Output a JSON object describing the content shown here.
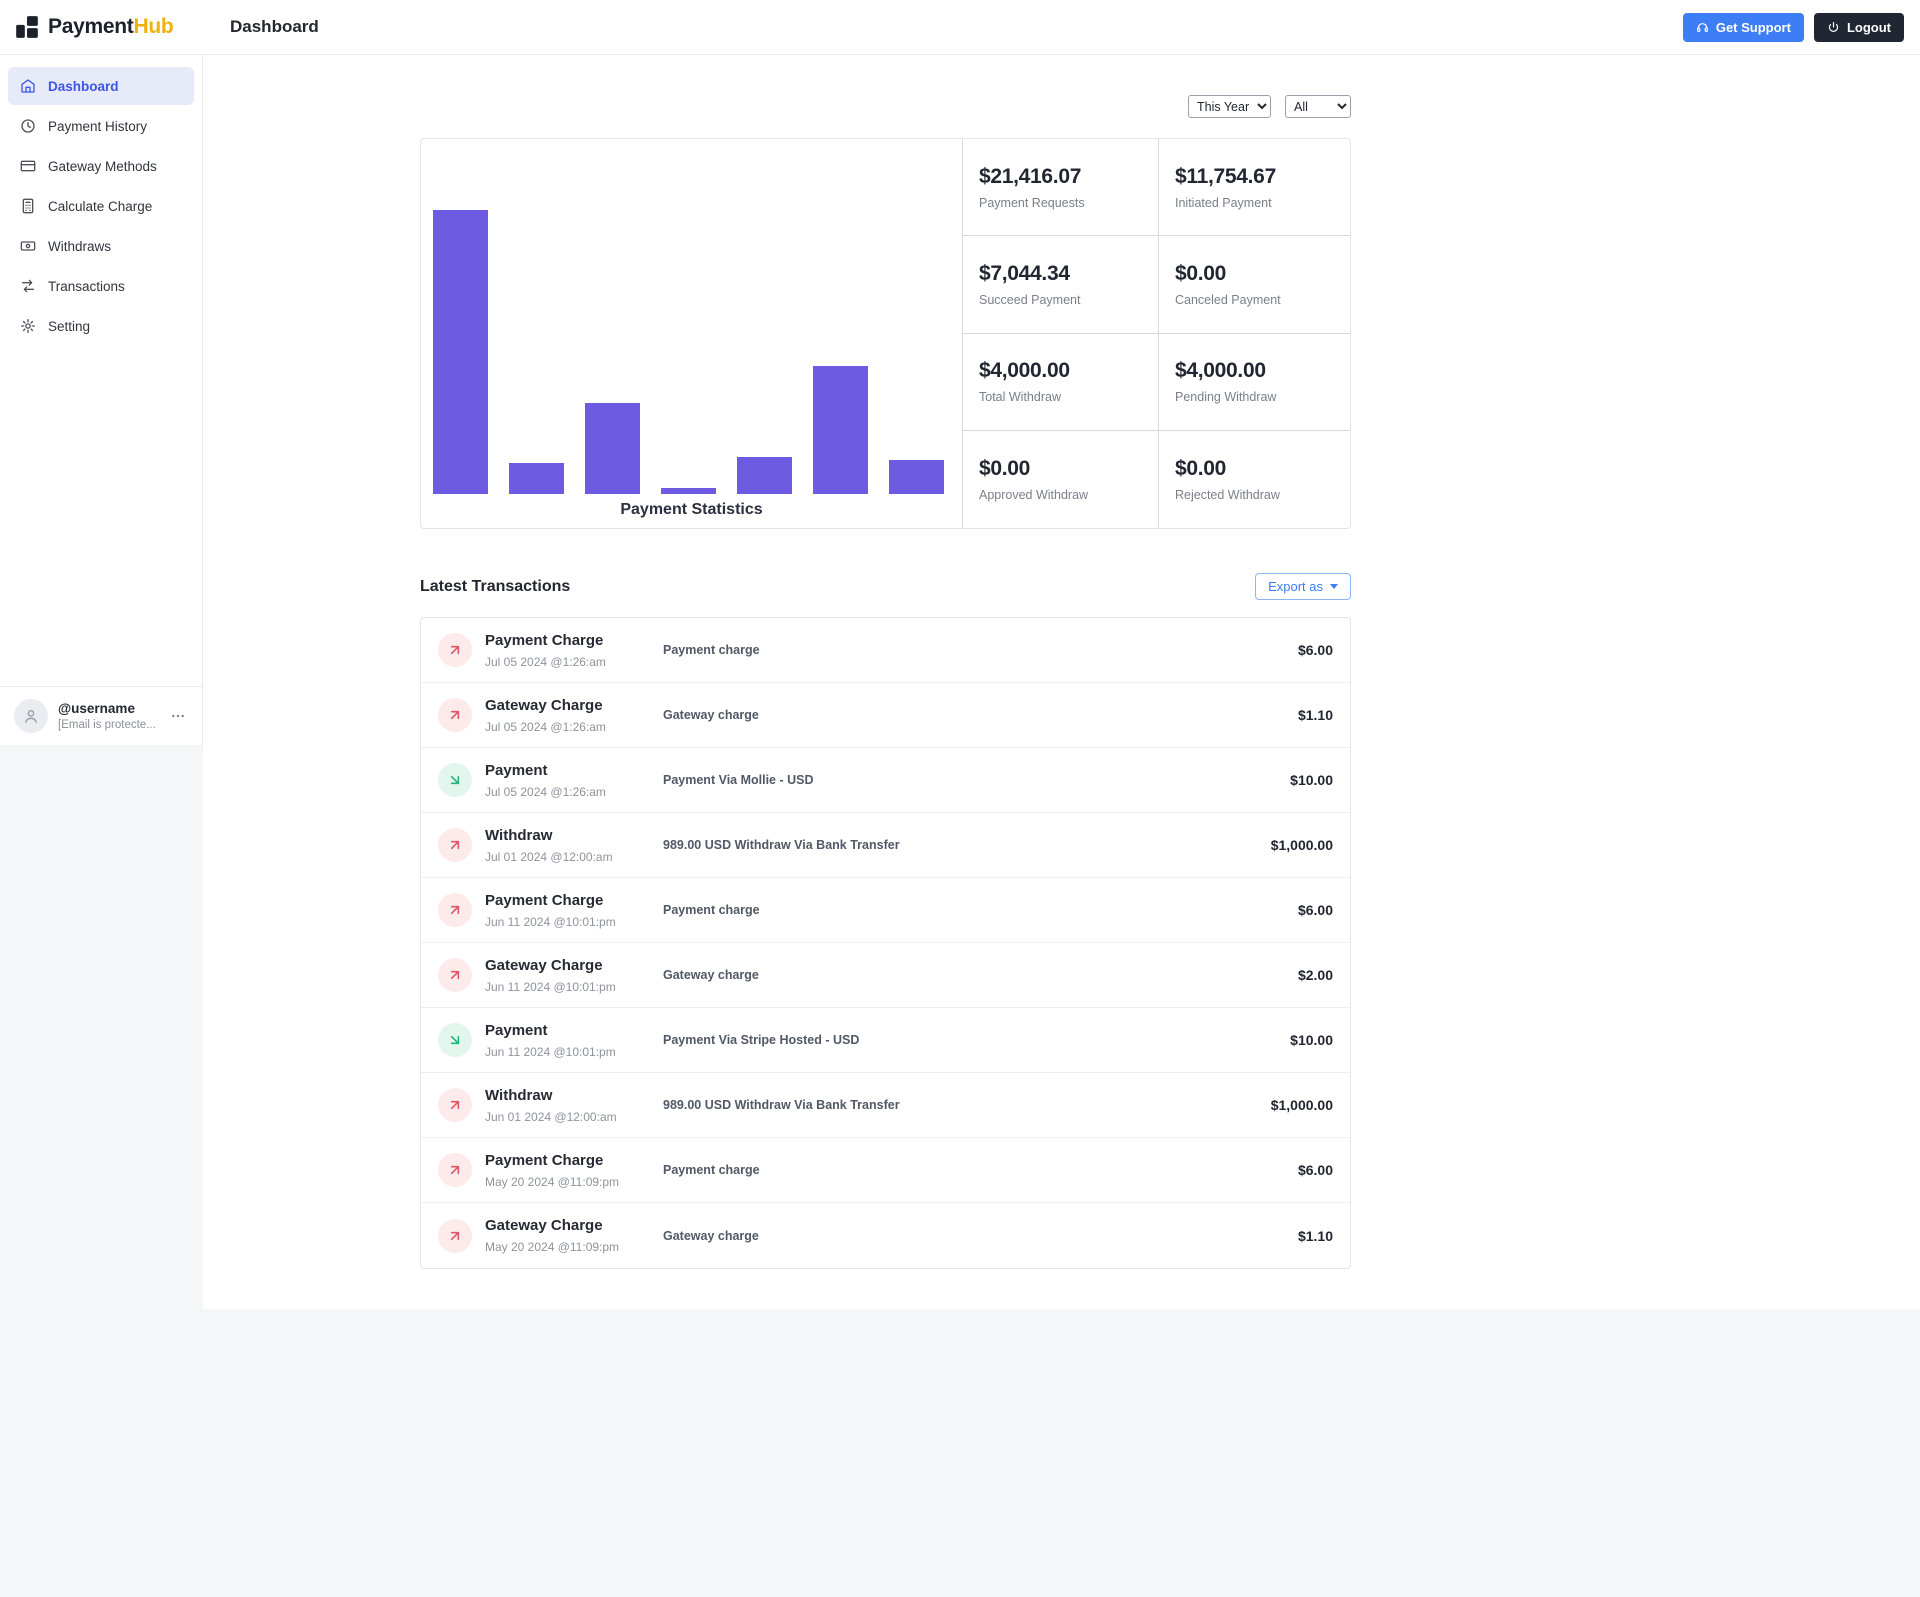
{
  "brand": {
    "name_primary": "Payment",
    "name_secondary": "Hub"
  },
  "header": {
    "page_title": "Dashboard",
    "get_support_label": "Get Support",
    "logout_label": "Logout"
  },
  "sidebar": {
    "items": [
      {
        "label": "Dashboard",
        "icon": "home-icon",
        "active": true
      },
      {
        "label": "Payment History",
        "icon": "clock-icon",
        "active": false
      },
      {
        "label": "Gateway Methods",
        "icon": "credit-card-icon",
        "active": false
      },
      {
        "label": "Calculate Charge",
        "icon": "calculator-icon",
        "active": false
      },
      {
        "label": "Withdraws",
        "icon": "banknote-icon",
        "active": false
      },
      {
        "label": "Transactions",
        "icon": "transfer-icon",
        "active": false
      },
      {
        "label": "Setting",
        "icon": "gear-icon",
        "active": false
      }
    ],
    "user": {
      "username": "@username",
      "email": "[Email is protecte..."
    }
  },
  "filters": {
    "period": "This Year",
    "scope": "All"
  },
  "stats": {
    "cells": [
      {
        "value": "$21,416.07",
        "label": "Payment Requests"
      },
      {
        "value": "$11,754.67",
        "label": "Initiated Payment"
      },
      {
        "value": "$7,044.34",
        "label": "Succeed Payment"
      },
      {
        "value": "$0.00",
        "label": "Canceled Payment"
      },
      {
        "value": "$4,000.00",
        "label": "Total Withdraw"
      },
      {
        "value": "$4,000.00",
        "label": "Pending Withdraw"
      },
      {
        "value": "$0.00",
        "label": "Approved Withdraw"
      },
      {
        "value": "$0.00",
        "label": "Rejected Withdraw"
      }
    ]
  },
  "chart_data": {
    "type": "bar",
    "title": "Payment Statistics",
    "categories": [
      "",
      "",
      "",
      "",
      "",
      "",
      ""
    ],
    "values": [
      100,
      11,
      32,
      2,
      13,
      45,
      12
    ],
    "value_unit": "relative-height-percent-of-tallest-bar",
    "xlabel": "",
    "ylabel": "",
    "axis_tick_labels_visible": false,
    "grid": false,
    "bar_color": "#6d5be2"
  },
  "transactions": {
    "title": "Latest Transactions",
    "export_label": "Export as",
    "rows": [
      {
        "title": "Payment Charge",
        "date": "Jul 05 2024 @1:26:am",
        "description": "Payment charge",
        "amount": "$6.00",
        "direction": "out"
      },
      {
        "title": "Gateway Charge",
        "date": "Jul 05 2024 @1:26:am",
        "description": "Gateway charge",
        "amount": "$1.10",
        "direction": "out"
      },
      {
        "title": "Payment",
        "date": "Jul 05 2024 @1:26:am",
        "description": "Payment Via Mollie - USD",
        "amount": "$10.00",
        "direction": "in"
      },
      {
        "title": "Withdraw",
        "date": "Jul 01 2024 @12:00:am",
        "description": "989.00 USD Withdraw Via Bank Transfer",
        "amount": "$1,000.00",
        "direction": "out"
      },
      {
        "title": "Payment Charge",
        "date": "Jun 11 2024 @10:01:pm",
        "description": "Payment charge",
        "amount": "$6.00",
        "direction": "out"
      },
      {
        "title": "Gateway Charge",
        "date": "Jun 11 2024 @10:01:pm",
        "description": "Gateway charge",
        "amount": "$2.00",
        "direction": "out"
      },
      {
        "title": "Payment",
        "date": "Jun 11 2024 @10:01:pm",
        "description": "Payment Via Stripe Hosted - USD",
        "amount": "$10.00",
        "direction": "in"
      },
      {
        "title": "Withdraw",
        "date": "Jun 01 2024 @12:00:am",
        "description": "989.00 USD Withdraw Via Bank Transfer",
        "amount": "$1,000.00",
        "direction": "out"
      },
      {
        "title": "Payment Charge",
        "date": "May 20 2024 @11:09:pm",
        "description": "Payment charge",
        "amount": "$6.00",
        "direction": "out"
      },
      {
        "title": "Gateway Charge",
        "date": "May 20 2024 @11:09:pm",
        "description": "Gateway charge",
        "amount": "$1.10",
        "direction": "out"
      }
    ]
  },
  "colors": {
    "accent_blue": "#3d7df6",
    "brand_gold": "#f0b10e",
    "bar_purple": "#6d5be2",
    "danger_red": "#e05666",
    "success_green": "#22b57d",
    "dark_button": "#202733",
    "active_item_bg": "#e7eaf8",
    "active_item_text": "#3a57e8"
  }
}
